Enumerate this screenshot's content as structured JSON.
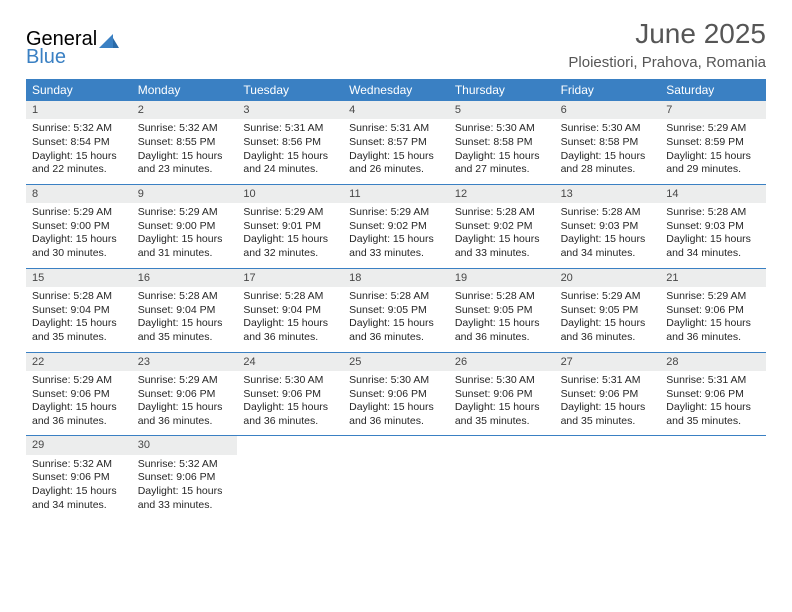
{
  "logo": {
    "general": "General",
    "blue": "Blue"
  },
  "title": "June 2025",
  "location": "Ploiestiori, Prahova, Romania",
  "colors": {
    "header_bg": "#3a80c3",
    "header_text": "#ffffff",
    "daynum_bg": "#eceded",
    "text": "#262626",
    "title_text": "#565656",
    "rule": "#3a80c3"
  },
  "day_labels": [
    "Sunday",
    "Monday",
    "Tuesday",
    "Wednesday",
    "Thursday",
    "Friday",
    "Saturday"
  ],
  "weeks": [
    [
      {
        "n": "1",
        "sr": "5:32 AM",
        "ss": "8:54 PM",
        "dl": "15 hours and 22 minutes."
      },
      {
        "n": "2",
        "sr": "5:32 AM",
        "ss": "8:55 PM",
        "dl": "15 hours and 23 minutes."
      },
      {
        "n": "3",
        "sr": "5:31 AM",
        "ss": "8:56 PM",
        "dl": "15 hours and 24 minutes."
      },
      {
        "n": "4",
        "sr": "5:31 AM",
        "ss": "8:57 PM",
        "dl": "15 hours and 26 minutes."
      },
      {
        "n": "5",
        "sr": "5:30 AM",
        "ss": "8:58 PM",
        "dl": "15 hours and 27 minutes."
      },
      {
        "n": "6",
        "sr": "5:30 AM",
        "ss": "8:58 PM",
        "dl": "15 hours and 28 minutes."
      },
      {
        "n": "7",
        "sr": "5:29 AM",
        "ss": "8:59 PM",
        "dl": "15 hours and 29 minutes."
      }
    ],
    [
      {
        "n": "8",
        "sr": "5:29 AM",
        "ss": "9:00 PM",
        "dl": "15 hours and 30 minutes."
      },
      {
        "n": "9",
        "sr": "5:29 AM",
        "ss": "9:00 PM",
        "dl": "15 hours and 31 minutes."
      },
      {
        "n": "10",
        "sr": "5:29 AM",
        "ss": "9:01 PM",
        "dl": "15 hours and 32 minutes."
      },
      {
        "n": "11",
        "sr": "5:29 AM",
        "ss": "9:02 PM",
        "dl": "15 hours and 33 minutes."
      },
      {
        "n": "12",
        "sr": "5:28 AM",
        "ss": "9:02 PM",
        "dl": "15 hours and 33 minutes."
      },
      {
        "n": "13",
        "sr": "5:28 AM",
        "ss": "9:03 PM",
        "dl": "15 hours and 34 minutes."
      },
      {
        "n": "14",
        "sr": "5:28 AM",
        "ss": "9:03 PM",
        "dl": "15 hours and 34 minutes."
      }
    ],
    [
      {
        "n": "15",
        "sr": "5:28 AM",
        "ss": "9:04 PM",
        "dl": "15 hours and 35 minutes."
      },
      {
        "n": "16",
        "sr": "5:28 AM",
        "ss": "9:04 PM",
        "dl": "15 hours and 35 minutes."
      },
      {
        "n": "17",
        "sr": "5:28 AM",
        "ss": "9:04 PM",
        "dl": "15 hours and 36 minutes."
      },
      {
        "n": "18",
        "sr": "5:28 AM",
        "ss": "9:05 PM",
        "dl": "15 hours and 36 minutes."
      },
      {
        "n": "19",
        "sr": "5:28 AM",
        "ss": "9:05 PM",
        "dl": "15 hours and 36 minutes."
      },
      {
        "n": "20",
        "sr": "5:29 AM",
        "ss": "9:05 PM",
        "dl": "15 hours and 36 minutes."
      },
      {
        "n": "21",
        "sr": "5:29 AM",
        "ss": "9:06 PM",
        "dl": "15 hours and 36 minutes."
      }
    ],
    [
      {
        "n": "22",
        "sr": "5:29 AM",
        "ss": "9:06 PM",
        "dl": "15 hours and 36 minutes."
      },
      {
        "n": "23",
        "sr": "5:29 AM",
        "ss": "9:06 PM",
        "dl": "15 hours and 36 minutes."
      },
      {
        "n": "24",
        "sr": "5:30 AM",
        "ss": "9:06 PM",
        "dl": "15 hours and 36 minutes."
      },
      {
        "n": "25",
        "sr": "5:30 AM",
        "ss": "9:06 PM",
        "dl": "15 hours and 36 minutes."
      },
      {
        "n": "26",
        "sr": "5:30 AM",
        "ss": "9:06 PM",
        "dl": "15 hours and 35 minutes."
      },
      {
        "n": "27",
        "sr": "5:31 AM",
        "ss": "9:06 PM",
        "dl": "15 hours and 35 minutes."
      },
      {
        "n": "28",
        "sr": "5:31 AM",
        "ss": "9:06 PM",
        "dl": "15 hours and 35 minutes."
      }
    ],
    [
      {
        "n": "29",
        "sr": "5:32 AM",
        "ss": "9:06 PM",
        "dl": "15 hours and 34 minutes."
      },
      {
        "n": "30",
        "sr": "5:32 AM",
        "ss": "9:06 PM",
        "dl": "15 hours and 33 minutes."
      },
      null,
      null,
      null,
      null,
      null
    ]
  ],
  "labels": {
    "sunrise": "Sunrise:",
    "sunset": "Sunset:",
    "daylight": "Daylight:"
  }
}
